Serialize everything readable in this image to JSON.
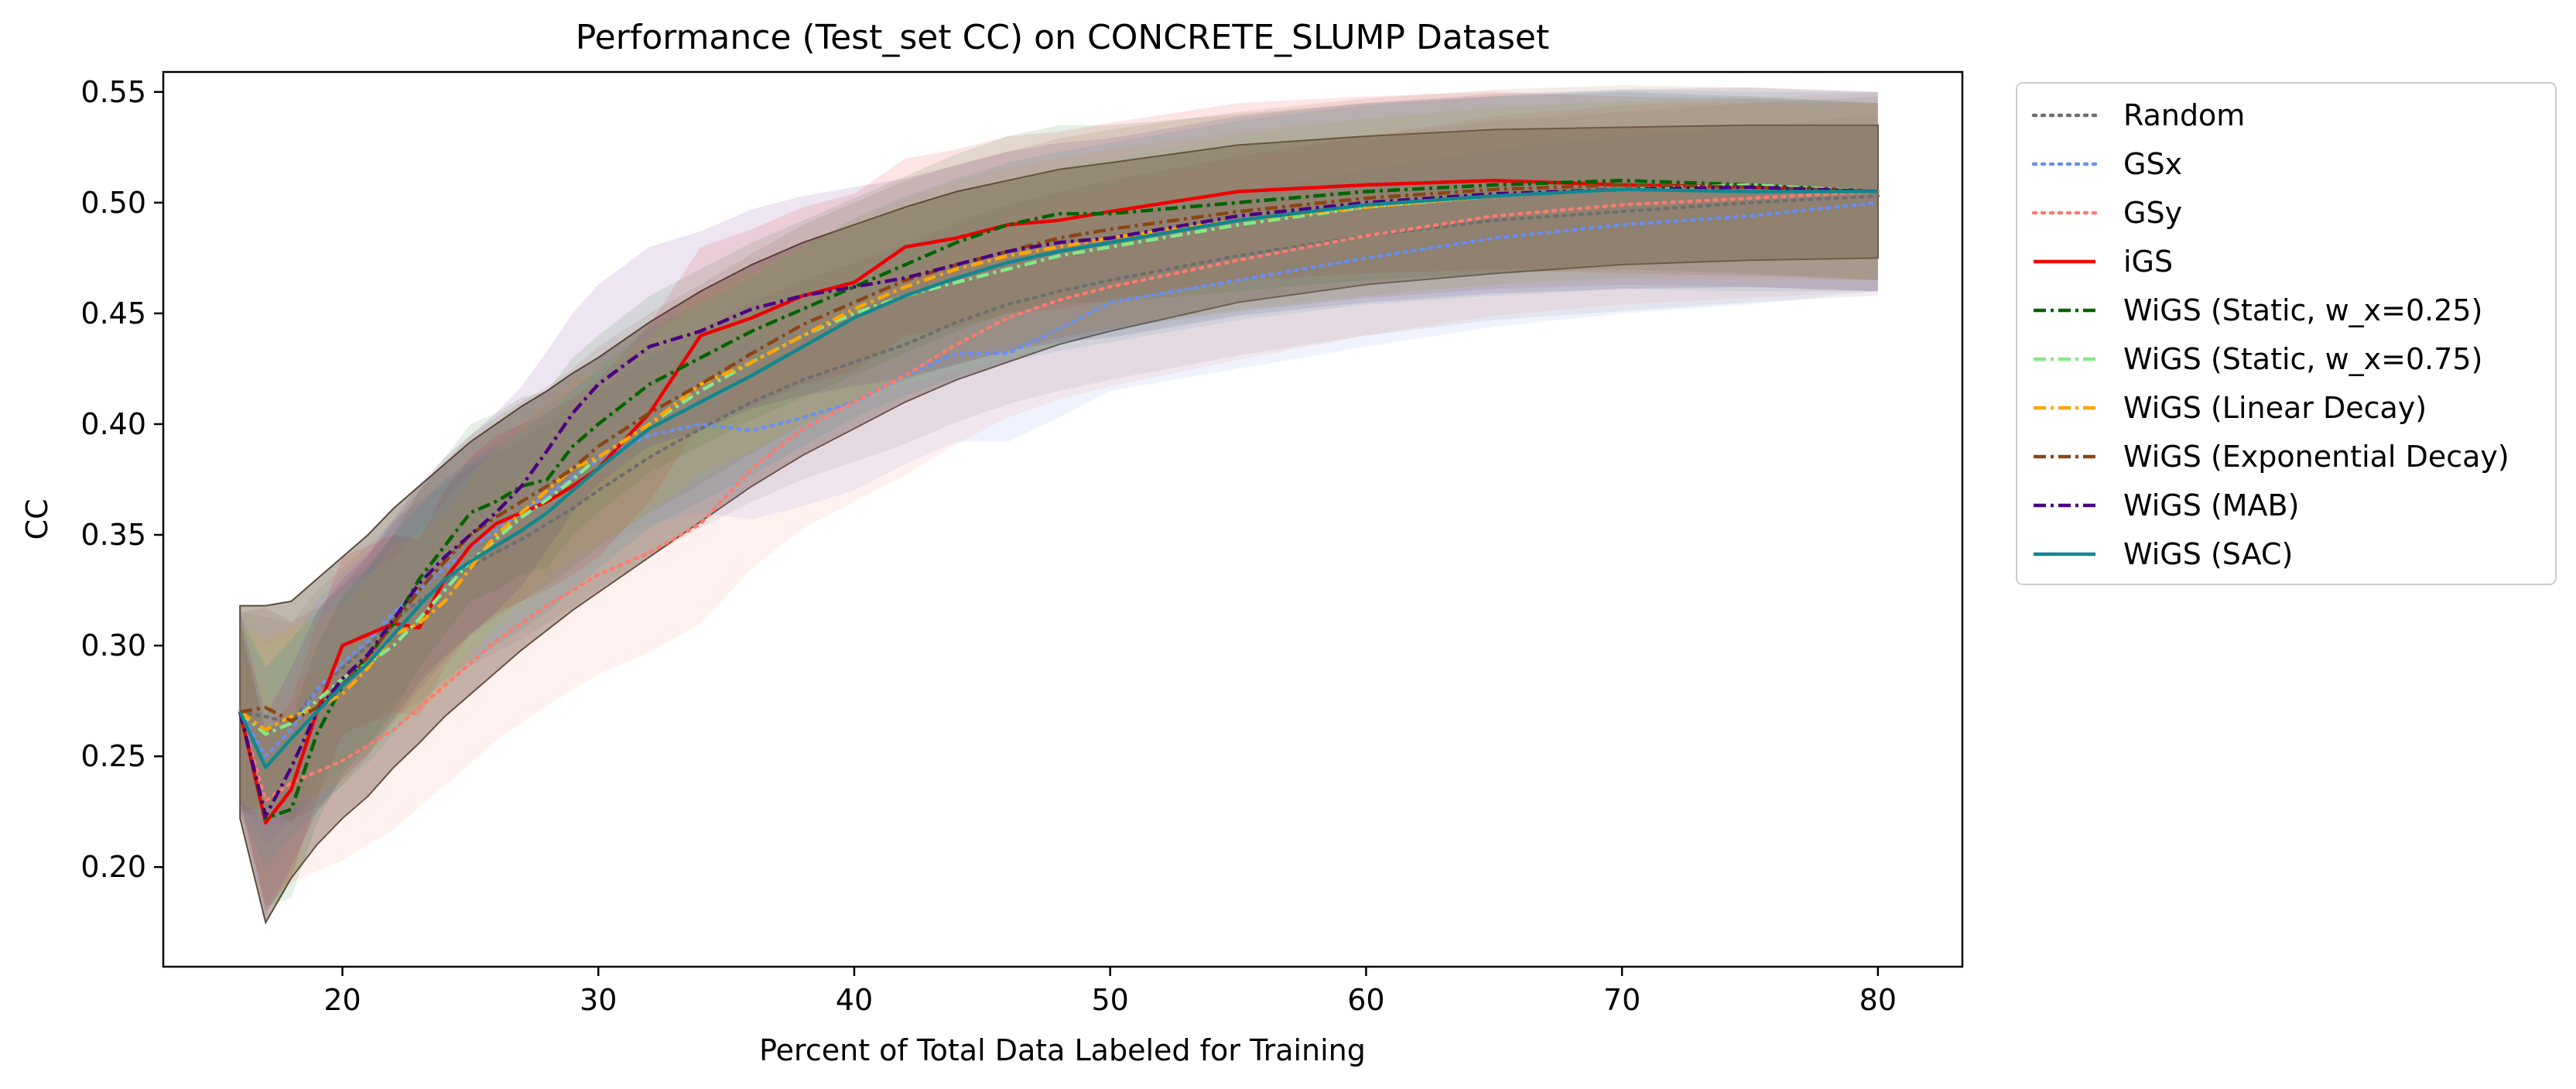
{
  "chart_data": {
    "type": "line",
    "title": "Performance (Test_set CC) on CONCRETE_SLUMP Dataset",
    "xlabel": "Percent of Total Data Labeled for Training",
    "ylabel": "CC",
    "xlim": [
      13,
      83.3
    ],
    "ylim": [
      0.155,
      0.559
    ],
    "xticks": [
      20,
      30,
      40,
      50,
      60,
      70,
      80
    ],
    "yticks": [
      0.2,
      0.25,
      0.3,
      0.35,
      0.4,
      0.45,
      0.5,
      0.55
    ],
    "ytick_labels": [
      "0.20",
      "0.25",
      "0.30",
      "0.35",
      "0.40",
      "0.45",
      "0.50",
      "0.55"
    ],
    "grid": false,
    "legend": "outside-right-top",
    "x": [
      16,
      17,
      18,
      19,
      20,
      21,
      22,
      23,
      24,
      25,
      26,
      27,
      28,
      29,
      30,
      32,
      34,
      36,
      38,
      40,
      42,
      44,
      46,
      48,
      50,
      55,
      60,
      65,
      70,
      75,
      80
    ],
    "series": [
      {
        "name": "Random",
        "color": "#6e6e6e",
        "dash": "dotted",
        "band": 0.045,
        "values": [
          0.27,
          0.268,
          0.265,
          0.28,
          0.29,
          0.3,
          0.312,
          0.32,
          0.328,
          0.336,
          0.342,
          0.348,
          0.355,
          0.362,
          0.37,
          0.385,
          0.398,
          0.41,
          0.42,
          0.428,
          0.436,
          0.446,
          0.454,
          0.46,
          0.465,
          0.476,
          0.485,
          0.492,
          0.496,
          0.5,
          0.503
        ]
      },
      {
        "name": "GSx",
        "color": "#6b8ef0",
        "dash": "dotted",
        "band": 0.04,
        "values": [
          0.27,
          0.25,
          0.262,
          0.28,
          0.292,
          0.302,
          0.315,
          0.325,
          0.335,
          0.344,
          0.352,
          0.36,
          0.368,
          0.376,
          0.384,
          0.395,
          0.4,
          0.397,
          0.403,
          0.41,
          0.422,
          0.432,
          0.432,
          0.443,
          0.455,
          0.465,
          0.475,
          0.484,
          0.49,
          0.494,
          0.5
        ]
      },
      {
        "name": "GSy",
        "color": "#ff7a70",
        "dash": "dotted",
        "band": 0.045,
        "values": [
          0.27,
          0.23,
          0.238,
          0.243,
          0.248,
          0.255,
          0.262,
          0.272,
          0.282,
          0.292,
          0.302,
          0.31,
          0.318,
          0.325,
          0.332,
          0.342,
          0.355,
          0.38,
          0.398,
          0.41,
          0.422,
          0.436,
          0.448,
          0.456,
          0.462,
          0.474,
          0.485,
          0.494,
          0.499,
          0.502,
          0.505
        ]
      },
      {
        "name": "iGS",
        "color": "#ee0000",
        "dash": "solid",
        "band": 0.04,
        "values": [
          0.27,
          0.22,
          0.235,
          0.27,
          0.3,
          0.305,
          0.31,
          0.308,
          0.33,
          0.345,
          0.355,
          0.36,
          0.365,
          0.372,
          0.38,
          0.405,
          0.44,
          0.448,
          0.458,
          0.464,
          0.48,
          0.484,
          0.49,
          0.492,
          0.496,
          0.505,
          0.508,
          0.51,
          0.508,
          0.507,
          0.505
        ]
      },
      {
        "name": "WiGS (Static, w_x=0.25)",
        "color": "#006400",
        "dash": "dashdot",
        "band": 0.04,
        "values": [
          0.27,
          0.222,
          0.226,
          0.26,
          0.282,
          0.295,
          0.31,
          0.33,
          0.345,
          0.36,
          0.365,
          0.372,
          0.375,
          0.39,
          0.4,
          0.418,
          0.43,
          0.442,
          0.452,
          0.462,
          0.472,
          0.482,
          0.49,
          0.495,
          0.495,
          0.5,
          0.505,
          0.508,
          0.51,
          0.508,
          0.505
        ]
      },
      {
        "name": "WiGS (Static, w_x=0.75)",
        "color": "#86e886",
        "dash": "dashdot",
        "band": 0.04,
        "values": [
          0.27,
          0.26,
          0.265,
          0.275,
          0.285,
          0.292,
          0.3,
          0.312,
          0.325,
          0.338,
          0.348,
          0.358,
          0.366,
          0.375,
          0.385,
          0.4,
          0.415,
          0.428,
          0.44,
          0.45,
          0.458,
          0.464,
          0.47,
          0.476,
          0.48,
          0.49,
          0.498,
          0.503,
          0.506,
          0.508,
          0.505
        ]
      },
      {
        "name": "WiGS (Linear Decay)",
        "color": "#ffa500",
        "dash": "dashdot",
        "band": 0.04,
        "values": [
          0.27,
          0.262,
          0.268,
          0.272,
          0.278,
          0.29,
          0.305,
          0.31,
          0.32,
          0.335,
          0.35,
          0.36,
          0.37,
          0.38,
          0.385,
          0.4,
          0.418,
          0.428,
          0.44,
          0.452,
          0.462,
          0.47,
          0.476,
          0.48,
          0.484,
          0.492,
          0.498,
          0.503,
          0.506,
          0.505,
          0.505
        ]
      },
      {
        "name": "WiGS (Exponential Decay)",
        "color": "#8b4513",
        "dash": "dashdot",
        "band": 0.045,
        "values": [
          0.27,
          0.272,
          0.266,
          0.272,
          0.282,
          0.295,
          0.31,
          0.325,
          0.338,
          0.35,
          0.358,
          0.365,
          0.372,
          0.38,
          0.39,
          0.405,
          0.418,
          0.432,
          0.445,
          0.455,
          0.465,
          0.472,
          0.478,
          0.484,
          0.488,
          0.496,
          0.502,
          0.506,
          0.508,
          0.507,
          0.505
        ]
      },
      {
        "name": "WiGS (MAB)",
        "color": "#4b0082",
        "dash": "dashdot",
        "band": 0.045,
        "values": [
          0.27,
          0.223,
          0.245,
          0.27,
          0.285,
          0.296,
          0.312,
          0.328,
          0.34,
          0.35,
          0.36,
          0.372,
          0.388,
          0.405,
          0.418,
          0.435,
          0.442,
          0.452,
          0.458,
          0.462,
          0.466,
          0.472,
          0.478,
          0.482,
          0.484,
          0.494,
          0.5,
          0.504,
          0.506,
          0.507,
          0.505
        ]
      },
      {
        "name": "WiGS (SAC)",
        "color": "#11878f",
        "dash": "solid",
        "band": 0.045,
        "values": [
          0.27,
          0.245,
          0.258,
          0.27,
          0.282,
          0.292,
          0.305,
          0.318,
          0.33,
          0.338,
          0.345,
          0.352,
          0.36,
          0.37,
          0.38,
          0.398,
          0.41,
          0.422,
          0.435,
          0.448,
          0.458,
          0.466,
          0.473,
          0.478,
          0.482,
          0.492,
          0.499,
          0.503,
          0.506,
          0.505,
          0.505
        ]
      }
    ],
    "aggregate_band": {
      "color": "#8b7d6b",
      "upper": [
        0.318,
        0.318,
        0.32,
        0.33,
        0.34,
        0.35,
        0.362,
        0.372,
        0.382,
        0.392,
        0.4,
        0.408,
        0.415,
        0.423,
        0.43,
        0.446,
        0.46,
        0.472,
        0.482,
        0.49,
        0.498,
        0.505,
        0.51,
        0.515,
        0.518,
        0.526,
        0.53,
        0.533,
        0.534,
        0.535,
        0.535
      ],
      "lower": [
        0.222,
        0.175,
        0.195,
        0.21,
        0.222,
        0.232,
        0.245,
        0.256,
        0.268,
        0.278,
        0.288,
        0.298,
        0.307,
        0.316,
        0.324,
        0.34,
        0.356,
        0.372,
        0.386,
        0.398,
        0.41,
        0.42,
        0.428,
        0.436,
        0.442,
        0.455,
        0.463,
        0.468,
        0.472,
        0.474,
        0.475
      ]
    }
  }
}
